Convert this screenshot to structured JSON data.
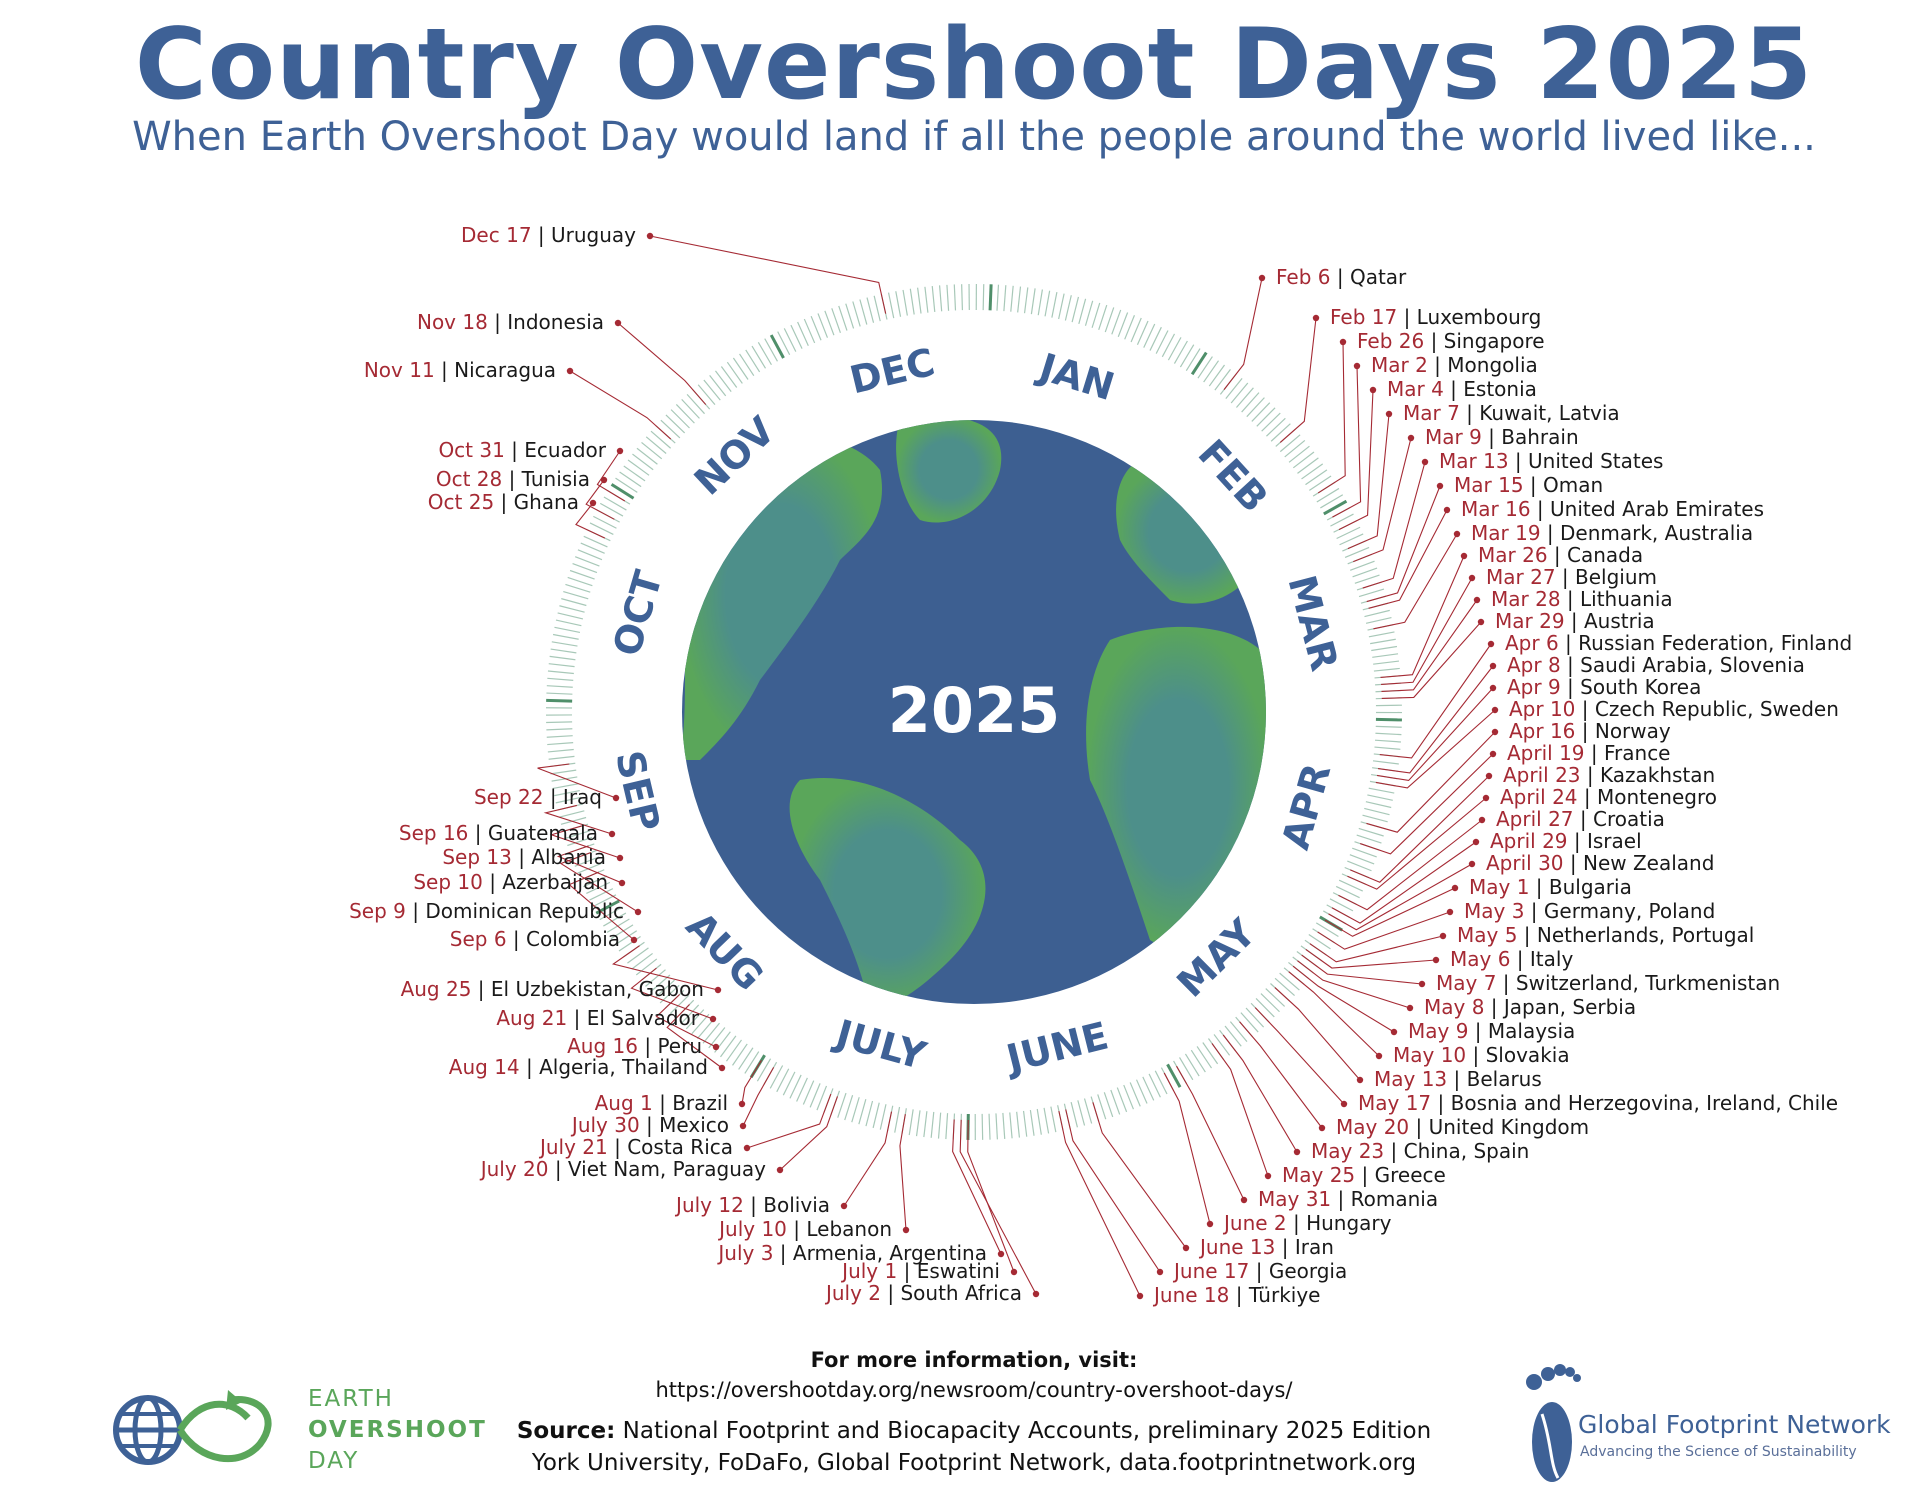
{
  "title": "Country Overshoot Days 2025",
  "subtitle": "When Earth Overshoot Day would land if all the people around the world lived like...",
  "center_year": "2025",
  "colors": {
    "title_blue": "#3e6196",
    "ocean": "#3d5f91",
    "land": "#5aa65a",
    "date_red": "#a52a34",
    "tick": "#a8c8b8"
  },
  "months": [
    "JAN",
    "FEB",
    "MAR",
    "APR",
    "MAY",
    "JUNE",
    "JULY",
    "AUG",
    "SEP",
    "OCT",
    "NOV",
    "DEC"
  ],
  "entries": [
    {
      "date": "Feb 6",
      "countries": "Qatar",
      "doy": 37
    },
    {
      "date": "Feb 17",
      "countries": "Luxembourg",
      "doy": 48
    },
    {
      "date": "Feb 26",
      "countries": "Singapore",
      "doy": 57
    },
    {
      "date": "Mar 2",
      "countries": "Mongolia",
      "doy": 61
    },
    {
      "date": "Mar 4",
      "countries": "Estonia",
      "doy": 63
    },
    {
      "date": "Mar 7",
      "countries": "Kuwait, Latvia",
      "doy": 66
    },
    {
      "date": "Mar 9",
      "countries": "Bahrain",
      "doy": 68
    },
    {
      "date": "Mar 13",
      "countries": "United States",
      "doy": 72
    },
    {
      "date": "Mar 15",
      "countries": "Oman",
      "doy": 74
    },
    {
      "date": "Mar 16",
      "countries": "United Arab Emirates",
      "doy": 75
    },
    {
      "date": "Mar 19",
      "countries": "Denmark, Australia",
      "doy": 78
    },
    {
      "date": "Mar 26",
      "countries": "Canada",
      "doy": 85
    },
    {
      "date": "Mar 27",
      "countries": "Belgium",
      "doy": 86
    },
    {
      "date": "Mar 28",
      "countries": "Lithuania",
      "doy": 87
    },
    {
      "date": "Mar 29",
      "countries": "Austria",
      "doy": 88
    },
    {
      "date": "Apr 6",
      "countries": "Russian Federation, Finland",
      "doy": 96
    },
    {
      "date": "Apr 8",
      "countries": "Saudi Arabia, Slovenia",
      "doy": 98
    },
    {
      "date": "Apr 9",
      "countries": "South Korea",
      "doy": 99
    },
    {
      "date": "Apr 10",
      "countries": "Czech Republic, Sweden",
      "doy": 100
    },
    {
      "date": "Apr 16",
      "countries": "Norway",
      "doy": 106
    },
    {
      "date": "April 19",
      "countries": "France",
      "doy": 109
    },
    {
      "date": "April 23",
      "countries": "Kazakhstan",
      "doy": 113
    },
    {
      "date": "April 24",
      "countries": "Montenegro",
      "doy": 114
    },
    {
      "date": "April 27",
      "countries": "Croatia",
      "doy": 117
    },
    {
      "date": "April 29",
      "countries": "Israel",
      "doy": 119
    },
    {
      "date": "April 30",
      "countries": "New Zealand",
      "doy": 120
    },
    {
      "date": "May 1",
      "countries": "Bulgaria",
      "doy": 121
    },
    {
      "date": "May 3",
      "countries": "Germany, Poland",
      "doy": 123
    },
    {
      "date": "May 5",
      "countries": "Netherlands, Portugal",
      "doy": 125
    },
    {
      "date": "May 6",
      "countries": "Italy",
      "doy": 126
    },
    {
      "date": "May 7",
      "countries": "Switzerland, Turkmenistan",
      "doy": 127
    },
    {
      "date": "May 8",
      "countries": "Japan, Serbia",
      "doy": 128
    },
    {
      "date": "May 9",
      "countries": "Malaysia",
      "doy": 129
    },
    {
      "date": "May 10",
      "countries": "Slovakia",
      "doy": 130
    },
    {
      "date": "May 13",
      "countries": "Belarus",
      "doy": 133
    },
    {
      "date": "May 17",
      "countries": "Bosnia and Herzegovina, Ireland, Chile",
      "doy": 137
    },
    {
      "date": "May 20",
      "countries": "United Kingdom",
      "doy": 140
    },
    {
      "date": "May 23",
      "countries": "China, Spain",
      "doy": 143
    },
    {
      "date": "May 25",
      "countries": "Greece",
      "doy": 145
    },
    {
      "date": "May 31",
      "countries": "Romania",
      "doy": 151
    },
    {
      "date": "June 2",
      "countries": "Hungary",
      "doy": 153
    },
    {
      "date": "June 13",
      "countries": "Iran",
      "doy": 164
    },
    {
      "date": "June 17",
      "countries": "Georgia",
      "doy": 168
    },
    {
      "date": "June 18",
      "countries": "Türkiye",
      "doy": 169
    },
    {
      "date": "July 1",
      "countries": "Eswatini",
      "doy": 182
    },
    {
      "date": "July 2",
      "countries": "South Africa",
      "doy": 183
    },
    {
      "date": "July 3",
      "countries": "Armenia, Argentina",
      "doy": 184
    },
    {
      "date": "July 10",
      "countries": "Lebanon",
      "doy": 191
    },
    {
      "date": "July 12",
      "countries": "Bolivia",
      "doy": 193
    },
    {
      "date": "July 20",
      "countries": "Viet Nam, Paraguay",
      "doy": 201
    },
    {
      "date": "July 21",
      "countries": "Costa Rica",
      "doy": 202
    },
    {
      "date": "July 30",
      "countries": "Mexico",
      "doy": 211
    },
    {
      "date": "Aug 1",
      "countries": "Brazil",
      "doy": 213
    },
    {
      "date": "Aug 14",
      "countries": "Algeria, Thailand",
      "doy": 226
    },
    {
      "date": "Aug 16",
      "countries": "Peru",
      "doy": 228
    },
    {
      "date": "Aug 21",
      "countries": "El Salvador",
      "doy": 233
    },
    {
      "date": "Aug 25",
      "countries": "El Uzbekistan, Gabon",
      "doy": 237
    },
    {
      "date": "Sep 6",
      "countries": "Colombia",
      "doy": 249
    },
    {
      "date": "Sep 9",
      "countries": "Dominican Republic",
      "doy": 252
    },
    {
      "date": "Sep 10",
      "countries": "Azerbaijan",
      "doy": 253
    },
    {
      "date": "Sep 13",
      "countries": "Albania",
      "doy": 256
    },
    {
      "date": "Sep 16",
      "countries": "Guatemala",
      "doy": 259
    },
    {
      "date": "Sep 22",
      "countries": "Iraq",
      "doy": 265
    },
    {
      "date": "Oct 25",
      "countries": "Ghana",
      "doy": 298
    },
    {
      "date": "Oct 28",
      "countries": "Tunisia",
      "doy": 301
    },
    {
      "date": "Oct 31",
      "countries": "Ecuador",
      "doy": 304
    },
    {
      "date": "Nov 11",
      "countries": "Nicaragua",
      "doy": 315
    },
    {
      "date": "Nov 18",
      "countries": "Indonesia",
      "doy": 322
    },
    {
      "date": "Dec 17",
      "countries": "Uruguay",
      "doy": 351
    }
  ],
  "footer": {
    "more_info": "For more information, visit:",
    "url": "https://overshootday.org/newsroom/country-overshoot-days/",
    "source_label": "Source:",
    "source_text": " National Footprint and Biocapacity Accounts, preliminary 2025 Edition",
    "source_line2": "York University, FoDaFo, Global Footprint Network, data.footprintnetwork.org"
  },
  "logos": {
    "eod_line1": "EARTH",
    "eod_line2": "OVERSHOOT",
    "eod_line3": "DAY",
    "eod_icon": "globe-infinity-icon",
    "gfn_name": "Global Footprint Network",
    "gfn_tagline": "Advancing the Science of Sustainability",
    "gfn_icon": "footprint-icon"
  }
}
